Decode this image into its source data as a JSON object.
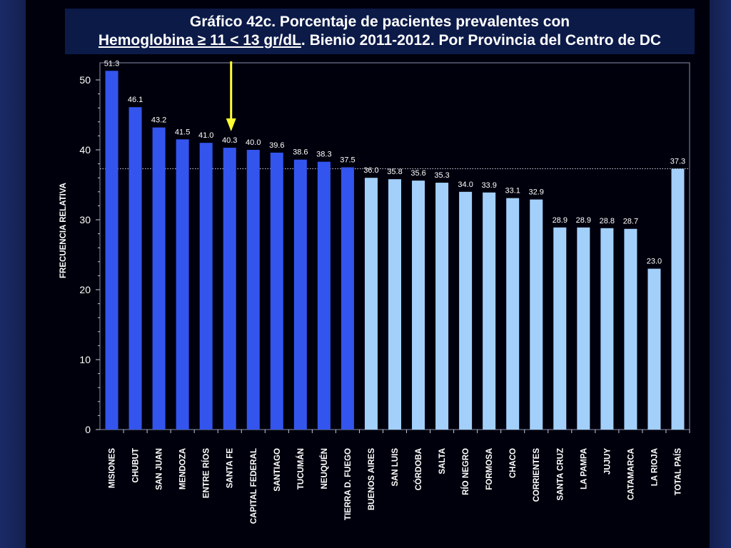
{
  "title": {
    "line1": "Gráfico 42c. Porcentaje de pacientes prevalentes con",
    "line2_underlined": "Hemoglobina ≥ 11 < 13 gr/dL",
    "line2_rest": ". Bienio 2011-2012. Por Provincia del Centro de DC"
  },
  "colors": {
    "dark_bar": "#3355ee",
    "light_bar": "#a3d0fb",
    "arrow": "#ffff33",
    "background": "#00000d"
  },
  "chart_data": {
    "type": "bar",
    "ylabel": "FRECUENCIA RELATIVA",
    "xlabel": "",
    "ylim": [
      0,
      52
    ],
    "yticks": [
      0,
      10,
      20,
      30,
      40,
      50
    ],
    "grid": false,
    "reference_line": {
      "value": 37.3,
      "style": "dotted"
    },
    "highlight_arrow_category": "SANTA FE",
    "categories": [
      "MISIONES",
      "CHUBUT",
      "SAN JUAN",
      "MENDOZA",
      "ENTRE RÍOS",
      "SANTA FE",
      "CAPITAL FEDERAL",
      "SANTIAGO",
      "TUCUMÁN",
      "NEUQUÉN",
      "TIERRA D. FUEGO",
      "BUENOS AIRES",
      "SAN LUIS",
      "CÓRDOBA",
      "SALTA",
      "RÍO NEGRO",
      "FORMOSA",
      "CHACO",
      "CORRIENTES",
      "SANTA CRUZ",
      "LA PAMPA",
      "JUJUY",
      "CATAMARCA",
      "LA RIOJA",
      "TOTAL PAÍS"
    ],
    "values": [
      51.3,
      46.1,
      43.2,
      41.5,
      41.0,
      40.3,
      40.0,
      39.6,
      38.6,
      38.3,
      37.5,
      36.0,
      35.8,
      35.6,
      35.3,
      34.0,
      33.9,
      33.1,
      32.9,
      28.9,
      28.9,
      28.8,
      28.7,
      23.0,
      37.3
    ],
    "value_labels": [
      "51.3",
      "46.1",
      "43.2",
      "41.5",
      "41.0",
      "40.3",
      "40.0",
      "39.6",
      "38.6",
      "38.3",
      "37.5",
      "36.0",
      "35.8",
      "35.6",
      "35.3",
      "34.0",
      "33.9",
      "33.1",
      "32.9",
      "28.9",
      "28.9",
      "28.8",
      "28.7",
      "23.0",
      "37.3"
    ],
    "bar_shade": [
      "dark",
      "dark",
      "dark",
      "dark",
      "dark",
      "dark",
      "dark",
      "dark",
      "dark",
      "dark",
      "dark",
      "light",
      "light",
      "light",
      "light",
      "light",
      "light",
      "light",
      "light",
      "light",
      "light",
      "light",
      "light",
      "light",
      "light"
    ]
  }
}
